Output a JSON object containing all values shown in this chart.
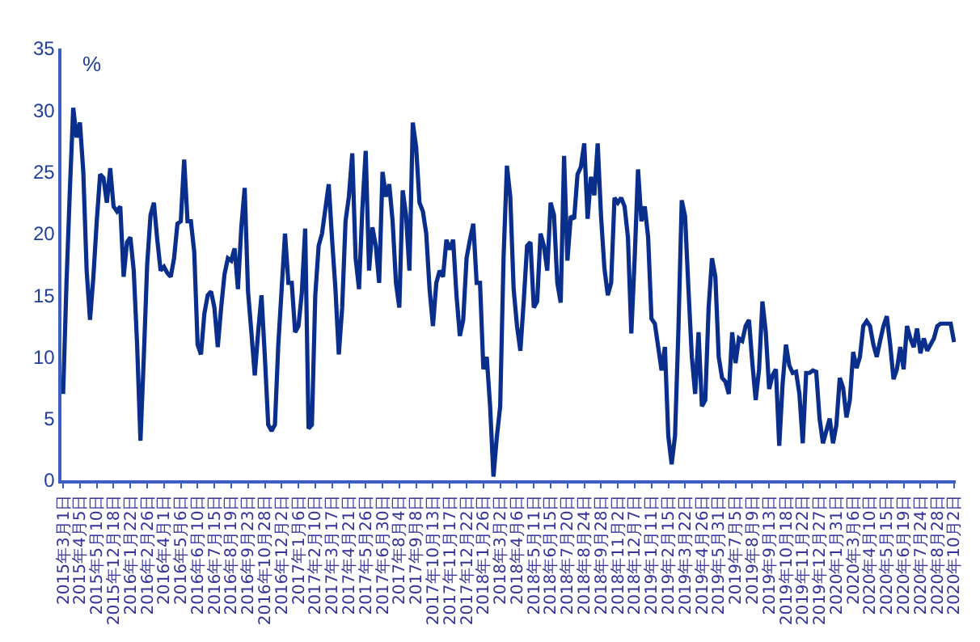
{
  "chart_data": {
    "type": "line",
    "ylabel": "%",
    "categories": [
      "2015年3月1日",
      null,
      null,
      null,
      null,
      "2015年4月5日",
      null,
      null,
      null,
      null,
      "2015年5月10日",
      null,
      null,
      null,
      null,
      "2015年12月18日",
      null,
      null,
      null,
      null,
      "2016年1月22日",
      null,
      null,
      null,
      null,
      "2016年2月26日",
      null,
      null,
      null,
      null,
      "2016年4月1日",
      null,
      null,
      null,
      null,
      "2016年5月6日",
      null,
      null,
      null,
      null,
      "2016年6月10日",
      null,
      null,
      null,
      null,
      "2016年7月15日",
      null,
      null,
      null,
      null,
      "2016年8月19日",
      null,
      null,
      null,
      null,
      "2016年9月23日",
      null,
      null,
      null,
      null,
      "2016年10月28日",
      null,
      null,
      null,
      null,
      "2016年12月2日",
      null,
      null,
      null,
      null,
      "2017年1月6日",
      null,
      null,
      null,
      null,
      "2017年2月10日",
      null,
      null,
      null,
      null,
      "2017年3月17日",
      null,
      null,
      null,
      null,
      "2017年4月21日",
      null,
      null,
      null,
      null,
      "2017年5月26日",
      null,
      null,
      null,
      null,
      "2017年6月30日",
      null,
      null,
      null,
      null,
      "2017年8月4日",
      null,
      null,
      null,
      null,
      "2017年9月8日",
      null,
      null,
      null,
      null,
      "2017年10月13日",
      null,
      null,
      null,
      null,
      "2017年11月17日",
      null,
      null,
      null,
      null,
      "2017年12月22日",
      null,
      null,
      null,
      null,
      "2018年1月26日",
      null,
      null,
      null,
      null,
      "2018年3月2日",
      null,
      null,
      null,
      null,
      "2018年4月6日",
      null,
      null,
      null,
      null,
      "2018年5月11日",
      null,
      null,
      null,
      null,
      "2018年6月15日",
      null,
      null,
      null,
      null,
      "2018年7月20日",
      null,
      null,
      null,
      null,
      "2018年8月24日",
      null,
      null,
      null,
      null,
      "2018年9月28日",
      null,
      null,
      null,
      null,
      "2018年11月2日",
      null,
      null,
      null,
      null,
      "2018年12月7日",
      null,
      null,
      null,
      null,
      "2019年1月11日",
      null,
      null,
      null,
      null,
      "2019年2月15日",
      null,
      null,
      null,
      null,
      "2019年3月22日",
      null,
      null,
      null,
      null,
      "2019年4月26日",
      null,
      null,
      null,
      null,
      "2019年5月31日",
      null,
      null,
      null,
      null,
      "2019年7月5日",
      null,
      null,
      null,
      null,
      "2019年8月9日",
      null,
      null,
      null,
      null,
      "2019年9月13日",
      null,
      null,
      null,
      null,
      "2019年10月18日",
      null,
      null,
      null,
      null,
      "2019年11月22日",
      null,
      null,
      null,
      null,
      "2019年12月27日",
      null,
      null,
      null,
      null,
      "2020年1月31日",
      null,
      null,
      null,
      null,
      "2020年3月6日",
      null,
      null,
      null,
      null,
      "2020年4月10日",
      null,
      null,
      null,
      null,
      "2020年5月15日",
      null,
      null,
      null,
      null,
      "2020年6月19日",
      null,
      null,
      null,
      null,
      "2020年7月24日",
      null,
      null,
      null,
      null,
      "2020年8月28日",
      null,
      null,
      null,
      null,
      "2020年10月2日"
    ],
    "series": [
      {
        "color": "#0a2e8c",
        "values": [
          7,
          16,
          23.5,
          30.2,
          27.8,
          29,
          25,
          17,
          13,
          16.5,
          21,
          24.8,
          24.5,
          22.5,
          25.3,
          22.2,
          21.8,
          22.2,
          16.5,
          19.3,
          19.7,
          17,
          11,
          3.2,
          10,
          17.5,
          21.5,
          22.5,
          19.5,
          17,
          17.3,
          16.8,
          16.5,
          18,
          20.8,
          21,
          26,
          21,
          21,
          18.5,
          11,
          10.2,
          13.5,
          15,
          15.3,
          14,
          10.8,
          14,
          16.7,
          18,
          17.8,
          18.8,
          15.5,
          20.5,
          23.7,
          15.3,
          12,
          8.5,
          12,
          15,
          10,
          4.5,
          4,
          4.5,
          11,
          15.5,
          20,
          16,
          16,
          12,
          12.5,
          15.2,
          20.4,
          4.2,
          4.5,
          15,
          19,
          20,
          22,
          24,
          19.5,
          15.5,
          10.2,
          14,
          21,
          23,
          26.5,
          18,
          15.5,
          22,
          26.7,
          17,
          20.5,
          19,
          16,
          25,
          23,
          24,
          21,
          16,
          14,
          23.5,
          21.5,
          17,
          29,
          27,
          22.5,
          21.8,
          20,
          15.5,
          12.5,
          16,
          17,
          16.5,
          19.5,
          18.7,
          19.5,
          15,
          11.7,
          13,
          18,
          19.5,
          20.8,
          16,
          16,
          9,
          10,
          6,
          0.3,
          3.5,
          6,
          18,
          25.5,
          23,
          15.5,
          12.5,
          10.5,
          14.5,
          19,
          19.3,
          14,
          14.5,
          20,
          19,
          17,
          22.5,
          21.5,
          16,
          14.4,
          26.3,
          17.8,
          21.4,
          21.2,
          24.8,
          25.4,
          27.3,
          21.2,
          24.6,
          23.1,
          27.3,
          21.4,
          17.2,
          15,
          16,
          22.9,
          22.5,
          22.9,
          22.2,
          19.7,
          11.9,
          18,
          25.2,
          21,
          22.2,
          19.7,
          13.1,
          12.7,
          10.8,
          8.9,
          10.8,
          3.6,
          1.3,
          3.6,
          12.1,
          22.7,
          21.4,
          15.5,
          10,
          7,
          12,
          6,
          6.5,
          14,
          18,
          16.5,
          10,
          8.3,
          8,
          7,
          12,
          9.5,
          11.5,
          11.3,
          12.5,
          13,
          9.5,
          6.5,
          9,
          14.5,
          12,
          7.4,
          8.5,
          9,
          2.8,
          7.8,
          11,
          9.3,
          8.7,
          8.8,
          7,
          3,
          8.7,
          8.7,
          8.9,
          8.8,
          5,
          3,
          4,
          5,
          3,
          4.5,
          8.3,
          7.5,
          5.1,
          6.5,
          10.4,
          9.1,
          10,
          12.5,
          12.9,
          12.5,
          11,
          10,
          11.3,
          12.5,
          13.3,
          11,
          8.2,
          9,
          10.8,
          9,
          12.5,
          11.5,
          10.8,
          12.3,
          10.3,
          11.5,
          10.5,
          11,
          11.5,
          12.5,
          12.7,
          12.7,
          12.7,
          12.7,
          11.2
        ]
      }
    ],
    "ylim": [
      0,
      35
    ],
    "yticks": [
      0,
      5,
      10,
      15,
      20,
      25,
      30,
      35
    ],
    "grid": false,
    "marker": "none",
    "line_style": "solid"
  }
}
